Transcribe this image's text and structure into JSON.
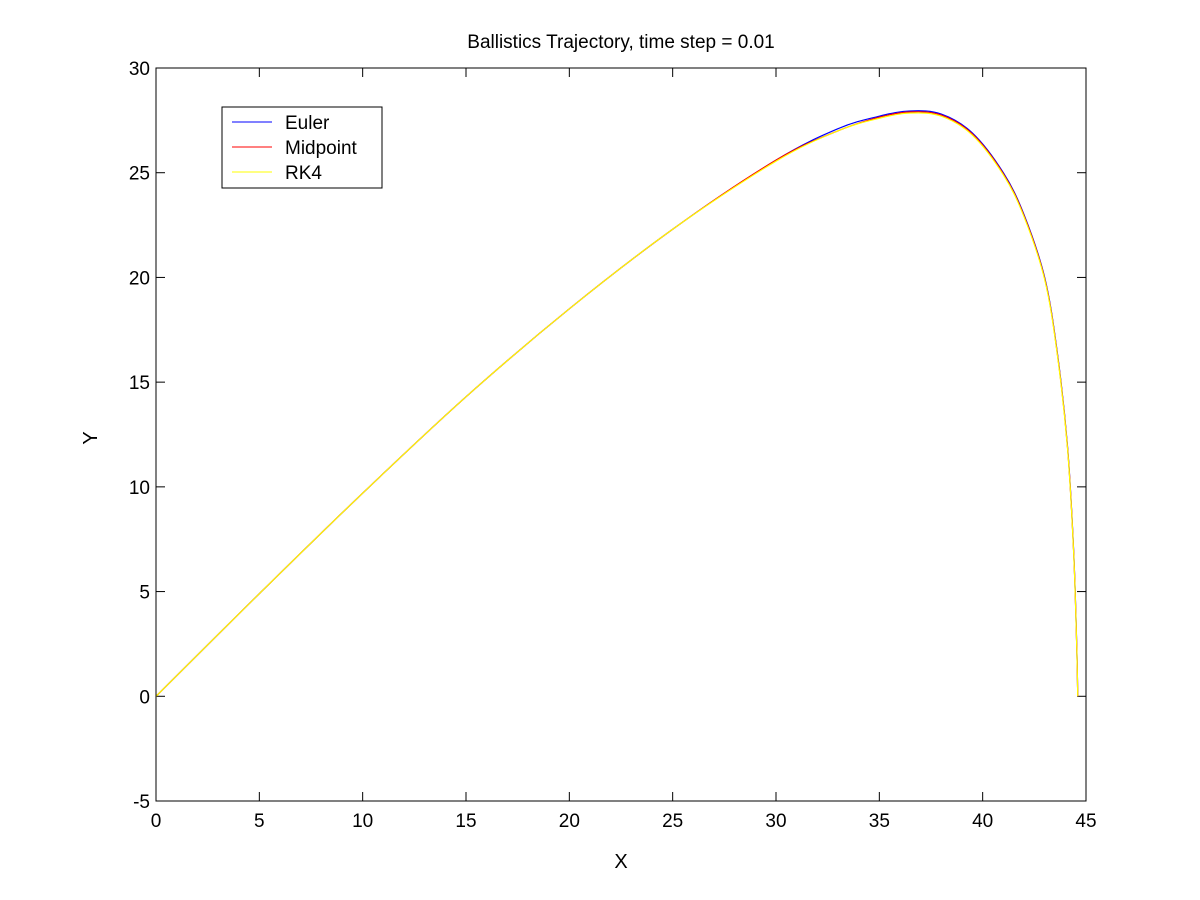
{
  "chart_data": {
    "type": "line",
    "title": "Ballistics Trajectory, time step = 0.01",
    "xlabel": "X",
    "ylabel": "Y",
    "xlim": [
      0,
      45
    ],
    "ylim": [
      -5,
      30
    ],
    "xticks": [
      0,
      5,
      10,
      15,
      20,
      25,
      30,
      35,
      40,
      45
    ],
    "yticks": [
      -5,
      0,
      5,
      10,
      15,
      20,
      25,
      30
    ],
    "grid": false,
    "legend_position": "top-left",
    "series": [
      {
        "name": "Euler",
        "color": "#0000ff",
        "x": [
          0,
          5,
          10,
          15,
          20,
          25,
          30,
          33,
          35,
          36.5,
          38,
          39.5,
          41,
          42,
          43,
          43.6,
          44.1,
          44.4,
          44.55,
          44.6
        ],
        "y": [
          0,
          4.9,
          9.7,
          14.3,
          18.5,
          22.3,
          25.6,
          27.1,
          27.7,
          27.95,
          27.8,
          26.9,
          25.0,
          23.0,
          20.0,
          16.5,
          12.0,
          7.0,
          2.5,
          0
        ]
      },
      {
        "name": "Midpoint",
        "color": "#ff0000",
        "x": [
          0,
          5,
          10,
          15,
          20,
          25,
          30,
          33,
          35,
          36.5,
          38,
          39.5,
          41,
          42,
          43,
          43.6,
          44.1,
          44.4,
          44.55,
          44.6
        ],
        "y": [
          0,
          4.9,
          9.7,
          14.3,
          18.5,
          22.3,
          25.6,
          27.0,
          27.65,
          27.9,
          27.75,
          26.85,
          24.95,
          22.95,
          19.95,
          16.45,
          11.95,
          6.95,
          2.45,
          0
        ]
      },
      {
        "name": "RK4",
        "color": "#ffff00",
        "x": [
          0,
          5,
          10,
          15,
          20,
          25,
          30,
          33,
          35,
          36.5,
          38,
          39.5,
          41,
          42,
          43,
          43.6,
          44.1,
          44.4,
          44.55,
          44.6
        ],
        "y": [
          0,
          4.9,
          9.7,
          14.3,
          18.5,
          22.3,
          25.55,
          27.0,
          27.6,
          27.85,
          27.7,
          26.8,
          24.9,
          22.9,
          19.9,
          16.4,
          11.9,
          6.9,
          2.4,
          0
        ]
      }
    ]
  }
}
